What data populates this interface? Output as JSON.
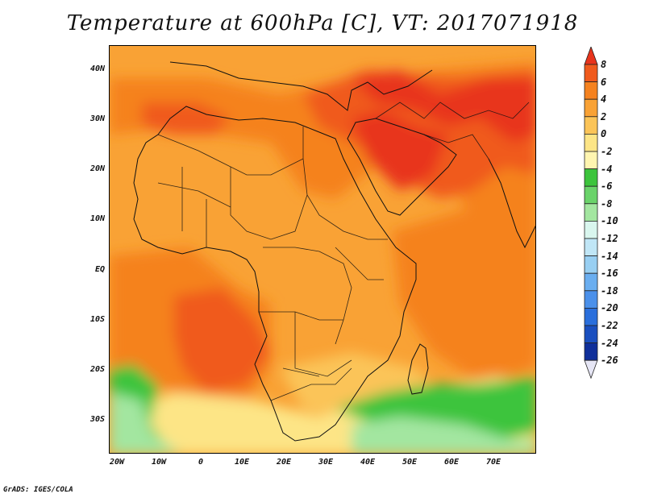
{
  "title": "Temperature at 600hPa [C], VT: 2017071918",
  "credit": "GrADS: IGES/COLA",
  "map": {
    "lon_range": [
      -22,
      80
    ],
    "lat_range": [
      -37,
      46
    ],
    "lon_ticks": [
      "20W",
      "10W",
      "0",
      "10E",
      "20E",
      "30E",
      "40E",
      "50E",
      "60E",
      "70E"
    ],
    "lat_ticks": [
      "40N",
      "30N",
      "20N",
      "10N",
      "EQ",
      "10S",
      "20S",
      "30S"
    ]
  },
  "colorbar": {
    "labels": [
      "8",
      "6",
      "4",
      "2",
      "0",
      "-2",
      "-4",
      "-6",
      "-8",
      "-10",
      "-12",
      "-14",
      "-16",
      "-18",
      "-20",
      "-22",
      "-24",
      "-26"
    ],
    "colors": [
      "#e8341c",
      "#f05a1c",
      "#f5821f",
      "#f9a235",
      "#fbc458",
      "#fde586",
      "#fff5b0",
      "#3cc43c",
      "#6ad36a",
      "#a3e6a0",
      "#d9f6ee",
      "#c0e6f6",
      "#98cff2",
      "#6aaef0",
      "#4a90ea",
      "#2a6fdc",
      "#1a4fbf",
      "#0f2f9a",
      "#0a1a6e"
    ]
  }
}
